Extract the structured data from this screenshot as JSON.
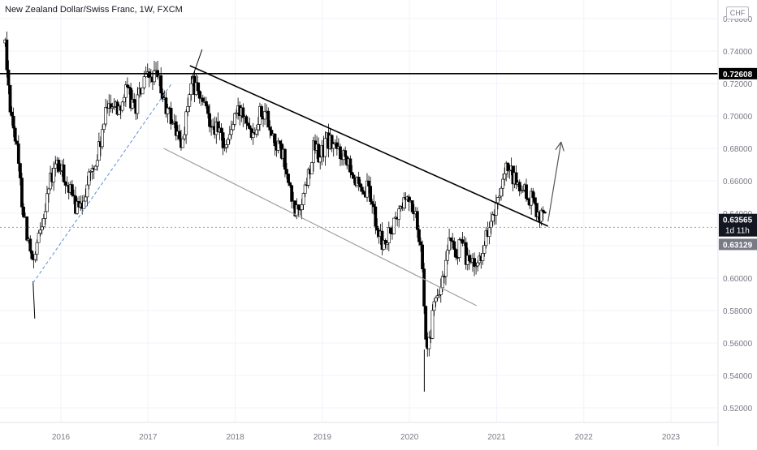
{
  "header": {
    "title": "New Zealand Dollar/Swiss Franc, 1W, FXCM",
    "currency": "CHF"
  },
  "colors": {
    "background": "#ffffff",
    "text": "#131722",
    "axis_text": "#787b86",
    "line_black": "#000000",
    "channel_gray": "#9e9e9e",
    "dashed_blue": "#5b8fd6",
    "current_label_bg": "#131722",
    "previous_label_bg": "#787b86"
  },
  "chart_data": {
    "type": "candlestick",
    "title": "New Zealand Dollar/Swiss Franc, 1W, FXCM",
    "timeframe": "1W",
    "x_range": [
      2015.36,
      2023.53
    ],
    "ylim": [
      0.51,
      0.77
    ],
    "x_tick_labels": [
      "2016",
      "2017",
      "2018",
      "2019",
      "2020",
      "2021",
      "2022",
      "2023"
    ],
    "x_ticks": [
      2016,
      2017,
      2018,
      2019,
      2020,
      2021,
      2022,
      2023
    ],
    "y_tick_labels": [
      "0.76000",
      "0.74000",
      "0.72000",
      "0.70000",
      "0.68000",
      "0.66000",
      "0.64000",
      "0.62000",
      "0.60000",
      "0.58000",
      "0.56000",
      "0.54000",
      "0.52000"
    ],
    "y_ticks": [
      0.76,
      0.74,
      0.72,
      0.7,
      0.68,
      0.66,
      0.64,
      0.62,
      0.6,
      0.58,
      0.56,
      0.54,
      0.52
    ],
    "price_path": [
      [
        2015.36,
        0.745
      ],
      [
        2015.4,
        0.715
      ],
      [
        2015.48,
        0.685
      ],
      [
        2015.55,
        0.65
      ],
      [
        2015.62,
        0.625
      ],
      [
        2015.68,
        0.605
      ],
      [
        2015.75,
        0.625
      ],
      [
        2015.85,
        0.655
      ],
      [
        2015.95,
        0.67
      ],
      [
        2016.05,
        0.662
      ],
      [
        2016.12,
        0.65
      ],
      [
        2016.22,
        0.64
      ],
      [
        2016.3,
        0.66
      ],
      [
        2016.4,
        0.67
      ],
      [
        2016.48,
        0.69
      ],
      [
        2016.55,
        0.71
      ],
      [
        2016.65,
        0.705
      ],
      [
        2016.75,
        0.715
      ],
      [
        2016.85,
        0.705
      ],
      [
        2016.95,
        0.72
      ],
      [
        2017.05,
        0.725
      ],
      [
        2017.12,
        0.722
      ],
      [
        2017.2,
        0.705
      ],
      [
        2017.3,
        0.695
      ],
      [
        2017.38,
        0.68
      ],
      [
        2017.45,
        0.705
      ],
      [
        2017.52,
        0.72
      ],
      [
        2017.6,
        0.71
      ],
      [
        2017.7,
        0.7
      ],
      [
        2017.8,
        0.69
      ],
      [
        2017.9,
        0.682
      ],
      [
        2018.0,
        0.7
      ],
      [
        2018.1,
        0.705
      ],
      [
        2018.2,
        0.69
      ],
      [
        2018.3,
        0.705
      ],
      [
        2018.38,
        0.698
      ],
      [
        2018.45,
        0.685
      ],
      [
        2018.55,
        0.675
      ],
      [
        2018.62,
        0.655
      ],
      [
        2018.68,
        0.64
      ],
      [
        2018.75,
        0.645
      ],
      [
        2018.82,
        0.66
      ],
      [
        2018.9,
        0.68
      ],
      [
        2018.98,
        0.675
      ],
      [
        2019.05,
        0.685
      ],
      [
        2019.12,
        0.682
      ],
      [
        2019.2,
        0.678
      ],
      [
        2019.3,
        0.675
      ],
      [
        2019.38,
        0.66
      ],
      [
        2019.45,
        0.648
      ],
      [
        2019.52,
        0.655
      ],
      [
        2019.6,
        0.64
      ],
      [
        2019.65,
        0.625
      ],
      [
        2019.72,
        0.62
      ],
      [
        2019.8,
        0.63
      ],
      [
        2019.88,
        0.64
      ],
      [
        2019.95,
        0.65
      ],
      [
        2020.03,
        0.645
      ],
      [
        2020.1,
        0.63
      ],
      [
        2020.15,
        0.61
      ],
      [
        2020.18,
        0.57
      ],
      [
        2020.22,
        0.555
      ],
      [
        2020.27,
        0.58
      ],
      [
        2020.33,
        0.59
      ],
      [
        2020.4,
        0.6
      ],
      [
        2020.45,
        0.62
      ],
      [
        2020.52,
        0.615
      ],
      [
        2020.6,
        0.62
      ],
      [
        2020.68,
        0.61
      ],
      [
        2020.75,
        0.605
      ],
      [
        2020.82,
        0.615
      ],
      [
        2020.9,
        0.63
      ],
      [
        2020.98,
        0.64
      ],
      [
        2021.05,
        0.65
      ],
      [
        2021.12,
        0.668
      ],
      [
        2021.2,
        0.66
      ],
      [
        2021.28,
        0.655
      ],
      [
        2021.36,
        0.65
      ],
      [
        2021.44,
        0.645
      ],
      [
        2021.5,
        0.64
      ],
      [
        2021.56,
        0.6356
      ]
    ],
    "price_lines": [
      {
        "label": "0.72608",
        "value": 0.72608,
        "style": "black"
      },
      {
        "label": "0.63565",
        "sublabel": "1d 11h",
        "value": 0.63565,
        "style": "current"
      },
      {
        "label": "0.63129",
        "value": 0.63129,
        "style": "previous"
      }
    ],
    "drawings": [
      {
        "kind": "horizontal",
        "value": 0.72608,
        "color": "black"
      },
      {
        "kind": "trendline",
        "from": [
          2017.48,
          0.731
        ],
        "to": [
          2021.59,
          0.632
        ],
        "color": "black"
      },
      {
        "kind": "trendline",
        "from": [
          2017.18,
          0.68
        ],
        "to": [
          2020.77,
          0.583
        ],
        "color": "gray"
      },
      {
        "kind": "dashed",
        "from": [
          2015.68,
          0.597
        ],
        "to": [
          2017.27,
          0.72
        ],
        "color": "blue"
      },
      {
        "kind": "arrow",
        "from": [
          2021.59,
          0.635
        ],
        "to": [
          2021.74,
          0.684
        ],
        "color": "gray"
      },
      {
        "kind": "dotted-horizontal",
        "value": 0.63129,
        "color": "gray"
      }
    ]
  }
}
